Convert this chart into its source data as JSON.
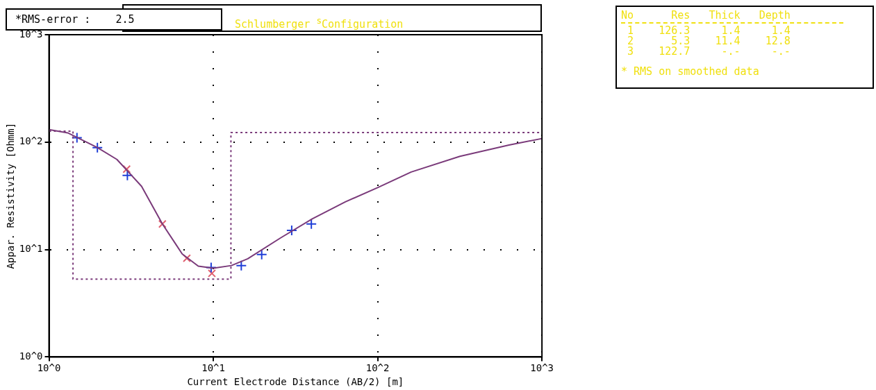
{
  "chart_data": {
    "type": "line",
    "title": "Schlumberger $^{s}$Configuration",
    "xlabel": "Current Electrode Distance (AB/2) [m]",
    "ylabel": "Appar. Resistivity [Ohmm]",
    "log": "xy",
    "xlim": [
      1,
      1000
    ],
    "ylim": [
      1,
      1000
    ],
    "xticks": [
      {
        "value": 1,
        "label": "10^0"
      },
      {
        "value": 10,
        "label": "10^1"
      },
      {
        "value": 100,
        "label": "10^2"
      },
      {
        "value": 1000,
        "label": "10^3"
      }
    ],
    "yticks": [
      {
        "value": 1,
        "label": "10^0"
      },
      {
        "value": 10,
        "label": "10^1"
      },
      {
        "value": 100,
        "label": "10^2"
      },
      {
        "value": 1000,
        "label": "10^3"
      }
    ],
    "grid": true,
    "legend": false,
    "series": [
      {
        "type": "step",
        "color": "#7a3a7a",
        "line_style": "dotted",
        "marker": "none",
        "x": [
          1,
          1.4,
          12.8,
          1000
        ],
        "values": [
          126.3,
          5.3,
          122.7,
          122.7
        ]
      },
      {
        "type": "line",
        "color": "#7a3a7a",
        "line_style": "solid",
        "marker": "none",
        "x": [
          1,
          1.3,
          1.97,
          2.59,
          3.66,
          4.9,
          6.47,
          8.1,
          10,
          12.9,
          16.2,
          25.6,
          40,
          63.6,
          100,
          160,
          317,
          630,
          1000
        ],
        "values": [
          131,
          122,
          89,
          69,
          38.8,
          17.3,
          9.1,
          7.0,
          6.7,
          7.1,
          8.2,
          12.8,
          19.3,
          27.8,
          37.7,
          52.7,
          73.8,
          94,
          108
        ]
      },
      {
        "type": "scatter",
        "color": "#1f3fd8",
        "marker": "cross",
        "x": [
          1.48,
          1.97,
          3.0,
          9.7,
          14.8,
          19.7,
          30,
          39.5
        ],
        "values": [
          110,
          89,
          49,
          6.8,
          7.1,
          9.0,
          15.1,
          17.3
        ]
      },
      {
        "type": "scatter",
        "color": "#e06070",
        "marker": "x",
        "x": [
          2.97,
          4.9,
          6.9,
          9.8
        ],
        "values": [
          56,
          17.3,
          8.3,
          6.0
        ]
      }
    ],
    "annotations": [
      "*RMS-error :    2.5",
      "No      Res   Thick   Depth",
      " 1    126.3     1.4     1.4",
      " 2      5.3    11.4    12.8",
      " 3    122.7     -.-     -.-",
      "* RMS on smoothed data"
    ]
  }
}
